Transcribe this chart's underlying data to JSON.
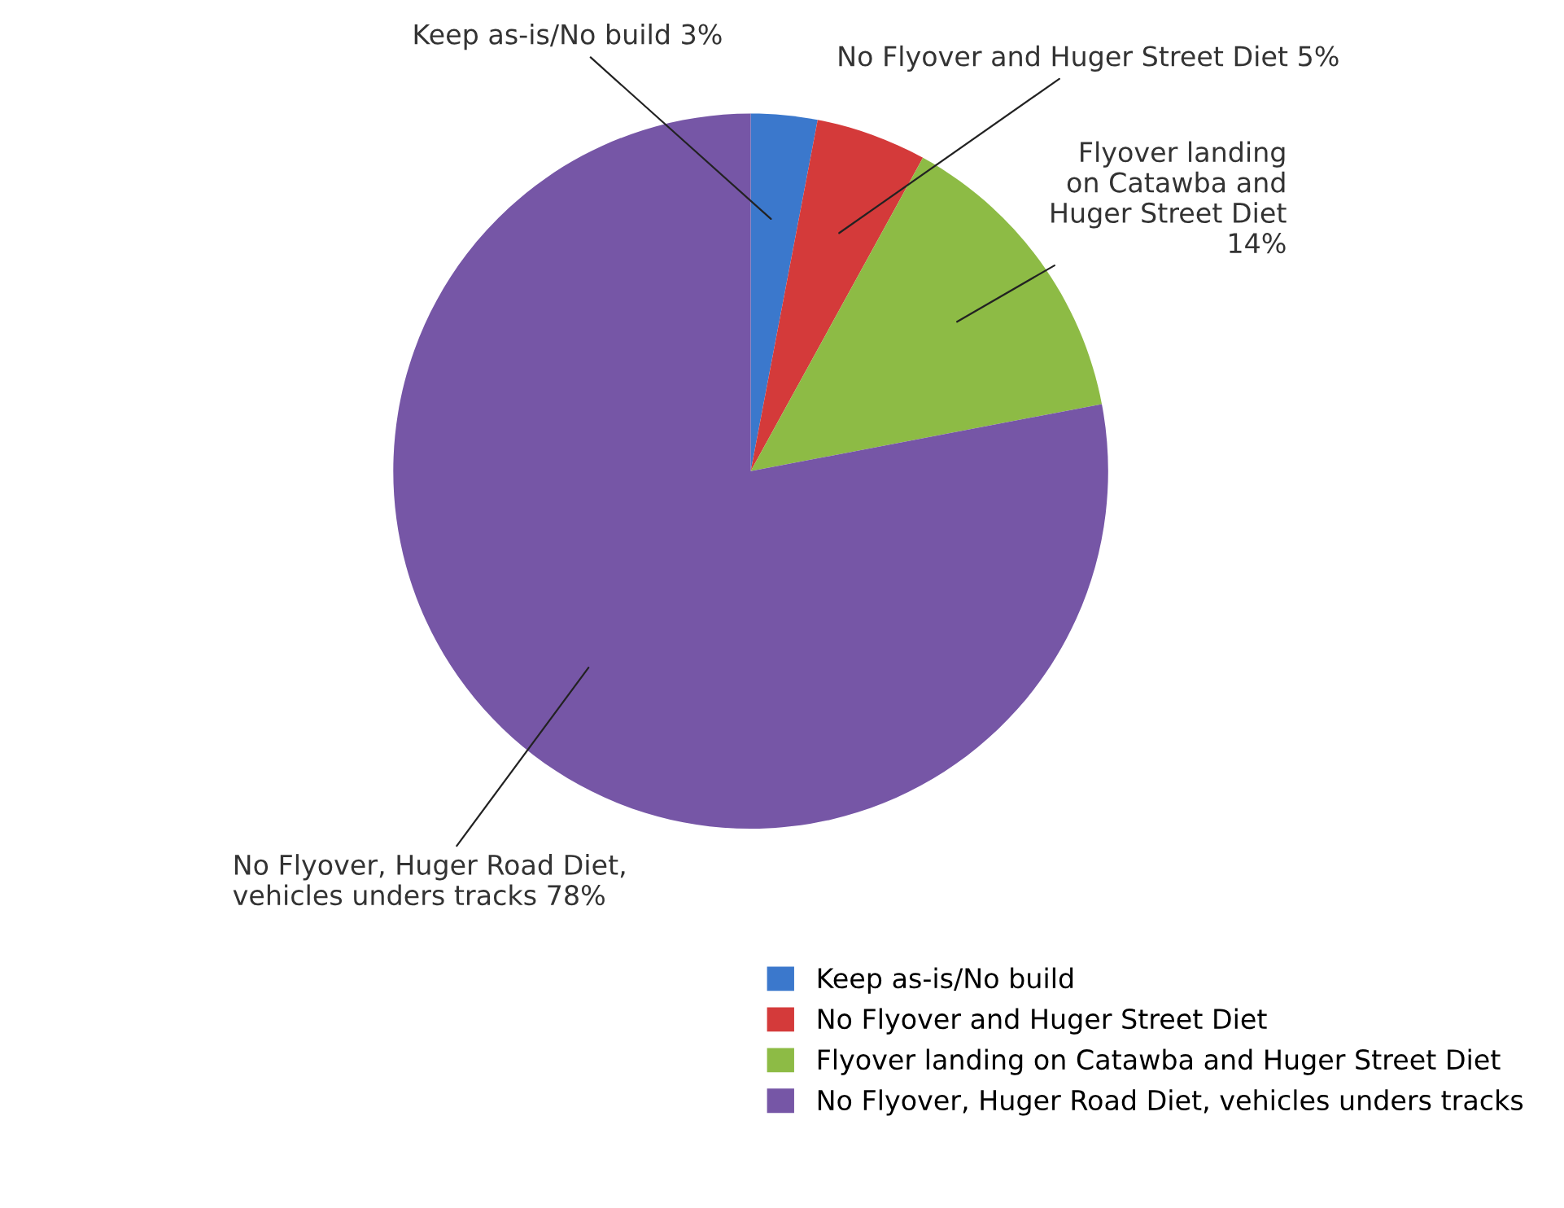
{
  "chart_data": {
    "type": "pie",
    "categories": [
      "Keep as-is/No build",
      "No Flyover and Huger Street Diet",
      "Flyover landing on Catawba and Huger Street Diet",
      "No Flyover, Huger Road Diet, vehicles unders tracks"
    ],
    "values": [
      3,
      5,
      14,
      78
    ],
    "colors": [
      "#3b78cc",
      "#d43a3a",
      "#8dbb45",
      "#7656a6"
    ],
    "value_labels": [
      "Keep as-is/No build 3%",
      "No Flyover and Huger Street Diet 5%",
      "Flyover landing\non Catawba and\nHuger Street Diet\n14%",
      "No Flyover, Huger Road Diet,\nvehicles unders tracks 78%"
    ],
    "legend": "bottom right"
  }
}
